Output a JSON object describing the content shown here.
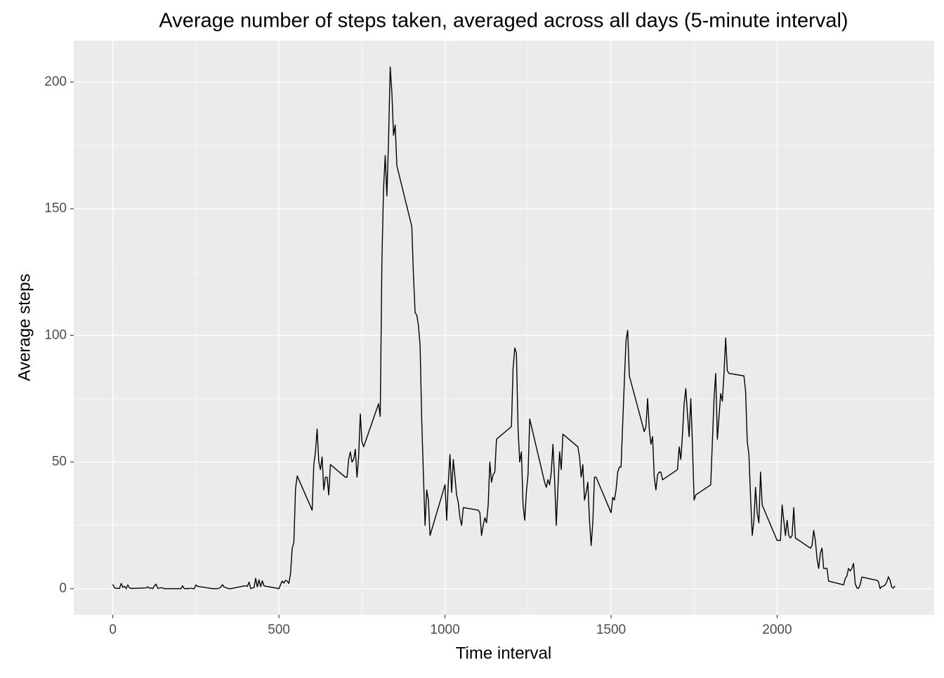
{
  "chart_data": {
    "type": "line",
    "title": "Average number of steps taken, averaged across all days (5-minute interval)",
    "x_label": "Time interval",
    "y_label": "Average steps",
    "x": [
      0,
      5,
      10,
      15,
      20,
      25,
      30,
      35,
      40,
      45,
      50,
      55,
      100,
      105,
      110,
      115,
      120,
      125,
      130,
      135,
      140,
      145,
      150,
      155,
      200,
      205,
      210,
      215,
      220,
      225,
      230,
      235,
      240,
      245,
      250,
      255,
      300,
      305,
      310,
      315,
      320,
      325,
      330,
      335,
      340,
      345,
      350,
      355,
      400,
      405,
      410,
      415,
      420,
      425,
      430,
      435,
      440,
      445,
      450,
      455,
      500,
      505,
      510,
      515,
      520,
      525,
      530,
      535,
      540,
      545,
      550,
      555,
      600,
      605,
      610,
      615,
      620,
      625,
      630,
      635,
      640,
      645,
      650,
      655,
      700,
      705,
      710,
      715,
      720,
      725,
      730,
      735,
      740,
      745,
      750,
      755,
      800,
      805,
      810,
      815,
      820,
      825,
      830,
      835,
      840,
      845,
      850,
      855,
      900,
      905,
      910,
      915,
      920,
      925,
      930,
      935,
      940,
      945,
      950,
      955,
      1000,
      1005,
      1010,
      1015,
      1020,
      1025,
      1030,
      1035,
      1040,
      1045,
      1050,
      1055,
      1100,
      1105,
      1110,
      1115,
      1120,
      1125,
      1130,
      1135,
      1140,
      1145,
      1150,
      1155,
      1200,
      1205,
      1210,
      1215,
      1220,
      1225,
      1230,
      1235,
      1240,
      1245,
      1250,
      1255,
      1300,
      1305,
      1310,
      1315,
      1320,
      1325,
      1330,
      1335,
      1340,
      1345,
      1350,
      1355,
      1400,
      1405,
      1410,
      1415,
      1420,
      1425,
      1430,
      1435,
      1440,
      1445,
      1450,
      1455,
      1500,
      1505,
      1510,
      1515,
      1520,
      1525,
      1530,
      1535,
      1540,
      1545,
      1550,
      1555,
      1600,
      1605,
      1610,
      1615,
      1620,
      1625,
      1630,
      1635,
      1640,
      1645,
      1650,
      1655,
      1700,
      1705,
      1710,
      1715,
      1720,
      1725,
      1730,
      1735,
      1740,
      1745,
      1750,
      1755,
      1800,
      1805,
      1810,
      1815,
      1820,
      1825,
      1830,
      1835,
      1840,
      1845,
      1850,
      1855,
      1900,
      1905,
      1910,
      1915,
      1920,
      1925,
      1930,
      1935,
      1940,
      1945,
      1950,
      1955,
      2000,
      2005,
      2010,
      2015,
      2020,
      2025,
      2030,
      2035,
      2040,
      2045,
      2050,
      2055,
      2100,
      2105,
      2110,
      2115,
      2120,
      2125,
      2130,
      2135,
      2140,
      2145,
      2150,
      2155,
      2200,
      2205,
      2210,
      2215,
      2220,
      2225,
      2230,
      2235,
      2240,
      2245,
      2250,
      2255,
      2300,
      2305,
      2310,
      2315,
      2320,
      2325,
      2330,
      2335,
      2340,
      2345,
      2350,
      2355
    ],
    "values": [
      1.7,
      0.3,
      0.1,
      0.2,
      0.1,
      2.1,
      0.5,
      0.9,
      0,
      1.5,
      0.3,
      0.1,
      0.3,
      0.7,
      0.2,
      0.3,
      0,
      1.1,
      1.8,
      0.2,
      0.2,
      0.4,
      0.3,
      0,
      0,
      0,
      1.1,
      0,
      0,
      0.1,
      0,
      0.2,
      0,
      0,
      1.5,
      0.9,
      0,
      0,
      0,
      0,
      0.2,
      0.6,
      1.6,
      0.6,
      0.5,
      0.1,
      0,
      0,
      1.2,
      0.9,
      2.6,
      0,
      0.3,
      0.4,
      4.1,
      0.7,
      3.5,
      0.8,
      3.1,
      1.1,
      0,
      1.6,
      3,
      2.2,
      3.3,
      3,
      2.1,
      6.1,
      16,
      18.3,
      39.5,
      44.5,
      31,
      49,
      54,
      63,
      50,
      47,
      52,
      39,
      44,
      44,
      37,
      49,
      44,
      44,
      51,
      54,
      50,
      51,
      55,
      44,
      52,
      69,
      58,
      56,
      73,
      68,
      129,
      158,
      171,
      155,
      177,
      206,
      196,
      179,
      183,
      167,
      143,
      124,
      109,
      108,
      104,
      96,
      66,
      45,
      25,
      39,
      35,
      21,
      41,
      27,
      42,
      53,
      38,
      51,
      44,
      37,
      34,
      28,
      25,
      32,
      31,
      30,
      21,
      25,
      28,
      26,
      33,
      50,
      42,
      45,
      46,
      59,
      64,
      87,
      95,
      93,
      63,
      50,
      54,
      33,
      27,
      38,
      45,
      67,
      42,
      40,
      43,
      41,
      46,
      57,
      43,
      25,
      40,
      54,
      47,
      61,
      56,
      52,
      44,
      49,
      35,
      38,
      42,
      27,
      17,
      26,
      44,
      44,
      30,
      36,
      35,
      39,
      46,
      48,
      48,
      65,
      82,
      98,
      102,
      84,
      62,
      64,
      75,
      63,
      57,
      60,
      44,
      39,
      45,
      46,
      46,
      43,
      47,
      56,
      51,
      61,
      73,
      79,
      69,
      60,
      75,
      57,
      35,
      37,
      41,
      58,
      75,
      85,
      59,
      68,
      77,
      74,
      85,
      99,
      86,
      85,
      84,
      78,
      58,
      53,
      36,
      21,
      27,
      40,
      30,
      26,
      46,
      33,
      19,
      19,
      19,
      33,
      27,
      21,
      27,
      21,
      20,
      21,
      32,
      20,
      16,
      17,
      23,
      19,
      12,
      8,
      14,
      16,
      8,
      8,
      8,
      3,
      1.5,
      4,
      5,
      8,
      7,
      8,
      10,
      2,
      0.3,
      0.1,
      1.6,
      4.6,
      3.3,
      2.8,
      0,
      0.8,
      1,
      1.5,
      2.6,
      4.7,
      3.3,
      0.6,
      0.2,
      1.1
    ],
    "color": "#000000",
    "xlim": [
      -117.75,
      2472.75
    ],
    "xticks": [
      0,
      500,
      1000,
      1500,
      2000
    ],
    "ylim": [
      -10.3,
      216.3
    ],
    "yticks": [
      0,
      50,
      100,
      150,
      200
    ],
    "grid": true,
    "minor_grid": true
  }
}
